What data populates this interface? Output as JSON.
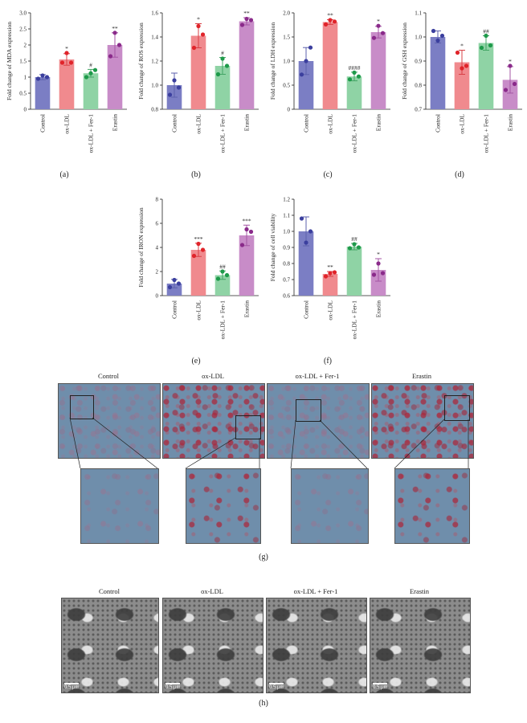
{
  "chart_data": [
    {
      "id": "a",
      "type": "bar",
      "panel_label": "(a)",
      "ylabel": "Fold change of MDA expression",
      "ylim": [
        0,
        3.0
      ],
      "yticks": [
        0,
        0.5,
        1.0,
        1.5,
        2.0,
        2.5,
        3.0
      ],
      "ytick_labels": [
        "0",
        "0.5",
        "1",
        "1.5",
        "2",
        "2.5",
        "3.0"
      ],
      "categories": [
        "Control",
        "ox-LDL",
        "ox-LDL + Fer-1",
        "Erastin"
      ],
      "values": [
        1.0,
        1.55,
        1.12,
        2.0
      ],
      "errors": [
        0.08,
        0.18,
        0.12,
        0.38
      ],
      "points": [
        [
          0.95,
          1.05,
          1.0
        ],
        [
          1.45,
          1.75,
          1.45
        ],
        [
          1.0,
          1.12,
          1.22
        ],
        [
          1.65,
          2.38,
          2.0
        ]
      ],
      "significance": [
        "",
        "*",
        "#",
        "**"
      ]
    },
    {
      "id": "b",
      "type": "bar",
      "panel_label": "(b)",
      "ylabel": "Fold change of ROS expression",
      "ylim": [
        0.8,
        1.6
      ],
      "yticks": [
        0.8,
        1.0,
        1.2,
        1.4,
        1.6
      ],
      "ytick_labels": [
        "0.8",
        "1.0",
        "1.2",
        "1.4",
        "1.6"
      ],
      "categories": [
        "Control",
        "ox-LDL",
        "ox-LDL + Fer-1",
        "Erastin"
      ],
      "values": [
        1.0,
        1.41,
        1.16,
        1.53
      ],
      "errors": [
        0.1,
        0.1,
        0.07,
        0.03
      ],
      "points": [
        [
          0.92,
          1.04,
          0.98
        ],
        [
          1.31,
          1.49,
          1.42
        ],
        [
          1.09,
          1.22,
          1.16
        ],
        [
          1.5,
          1.55,
          1.54
        ]
      ],
      "significance": [
        "",
        "*",
        "#",
        "**"
      ]
    },
    {
      "id": "c",
      "type": "bar",
      "panel_label": "(c)",
      "ylabel": "Fold change of LDH expression",
      "ylim": [
        0,
        2.0
      ],
      "yticks": [
        0,
        0.5,
        1.0,
        1.5,
        2.0
      ],
      "ytick_labels": [
        "0",
        "0.5",
        "1.0",
        "1.5",
        "2.0"
      ],
      "categories": [
        "Control",
        "ox-LDL",
        "ox-LDL + Fer-1",
        "Erastin"
      ],
      "values": [
        1.0,
        1.81,
        0.68,
        1.6
      ],
      "errors": [
        0.28,
        0.05,
        0.09,
        0.12
      ],
      "points": [
        [
          0.72,
          1.0,
          1.28
        ],
        [
          1.76,
          1.85,
          1.82
        ],
        [
          0.62,
          0.76,
          0.68
        ],
        [
          1.48,
          1.73,
          1.58
        ]
      ],
      "significance": [
        "",
        "**",
        "####",
        "*"
      ]
    },
    {
      "id": "d",
      "type": "bar",
      "panel_label": "(d)",
      "ylabel": "Fold change of GSH expression",
      "ylim": [
        0.7,
        1.1
      ],
      "yticks": [
        0.7,
        0.8,
        0.9,
        1.0,
        1.1
      ],
      "ytick_labels": [
        "0.7",
        "0.8",
        "0.9",
        "1.0",
        "1.1"
      ],
      "categories": [
        "Control",
        "ox-LDL",
        "ox-LDL + Fer-1",
        "Erastin"
      ],
      "values": [
        1.0,
        0.895,
        0.975,
        0.822
      ],
      "errors": [
        0.025,
        0.05,
        0.03,
        0.055
      ],
      "points": [
        [
          1.025,
          0.985,
          1.005
        ],
        [
          0.935,
          0.87,
          0.88
        ],
        [
          0.955,
          1.005,
          0.965
        ],
        [
          0.78,
          0.88,
          0.805
        ]
      ],
      "significance": [
        "",
        "*",
        "##",
        "*"
      ]
    },
    {
      "id": "e",
      "type": "bar",
      "panel_label": "(e)",
      "ylabel": "Fold change of IRON expression",
      "ylim": [
        0,
        8
      ],
      "yticks": [
        0,
        2,
        4,
        6,
        8
      ],
      "ytick_labels": [
        "0",
        "2",
        "4",
        "6",
        "8"
      ],
      "categories": [
        "Control",
        "ox-LDL",
        "ox-LDL + Fer-1",
        "Erastin"
      ],
      "values": [
        1.0,
        3.8,
        1.7,
        5.0
      ],
      "errors": [
        0.35,
        0.55,
        0.35,
        0.85
      ],
      "points": [
        [
          0.7,
          1.3,
          1.0
        ],
        [
          3.3,
          4.3,
          3.8
        ],
        [
          1.4,
          2.0,
          1.7
        ],
        [
          4.2,
          5.5,
          5.3
        ]
      ],
      "significance": [
        "",
        "***",
        "##",
        "***"
      ]
    },
    {
      "id": "f",
      "type": "bar",
      "panel_label": "(f)",
      "ylabel": "Fold change of cell viability",
      "ylim": [
        0.6,
        1.2
      ],
      "yticks": [
        0.6,
        0.7,
        0.8,
        0.9,
        1.0,
        1.1,
        1.2
      ],
      "ytick_labels": [
        "0.6",
        "0.7",
        "0.8",
        "0.9",
        "1.0",
        "1.1",
        "1.2"
      ],
      "categories": [
        "Control",
        "ox-LDL",
        "ox-LDL + Fer-1",
        "Erastin"
      ],
      "values": [
        1.0,
        0.735,
        0.905,
        0.76
      ],
      "errors": [
        0.09,
        0.015,
        0.02,
        0.07
      ],
      "points": [
        [
          1.08,
          0.93,
          1.0
        ],
        [
          0.72,
          0.74,
          0.745
        ],
        [
          0.895,
          0.92,
          0.9
        ],
        [
          0.73,
          0.8,
          0.74
        ]
      ],
      "significance": [
        "",
        "**",
        "##",
        "*"
      ]
    }
  ],
  "colors": {
    "bars": [
      "#7b7ec4",
      "#f08a8e",
      "#8fd3a5",
      "#c88cc8"
    ],
    "dots": [
      "#3b3f9e",
      "#e0242a",
      "#1e9a4a",
      "#8a2a8a"
    ],
    "errorbars": [
      "#5d61ad",
      "#d84046",
      "#43a565",
      "#a456a4"
    ],
    "stained_cells": "#a8283c",
    "microscopy_background": "#6f8eab"
  },
  "panel_g": {
    "label": "(g)",
    "titles": [
      "Control",
      "ox-LDL",
      "ox-LDL + Fer-1",
      "Erastin"
    ]
  },
  "panel_h": {
    "label": "(h)",
    "titles": [
      "Control",
      "ox-LDL",
      "ox-LDL + Fer-1",
      "Erastin"
    ],
    "scale_bar": "0.5 μm"
  }
}
